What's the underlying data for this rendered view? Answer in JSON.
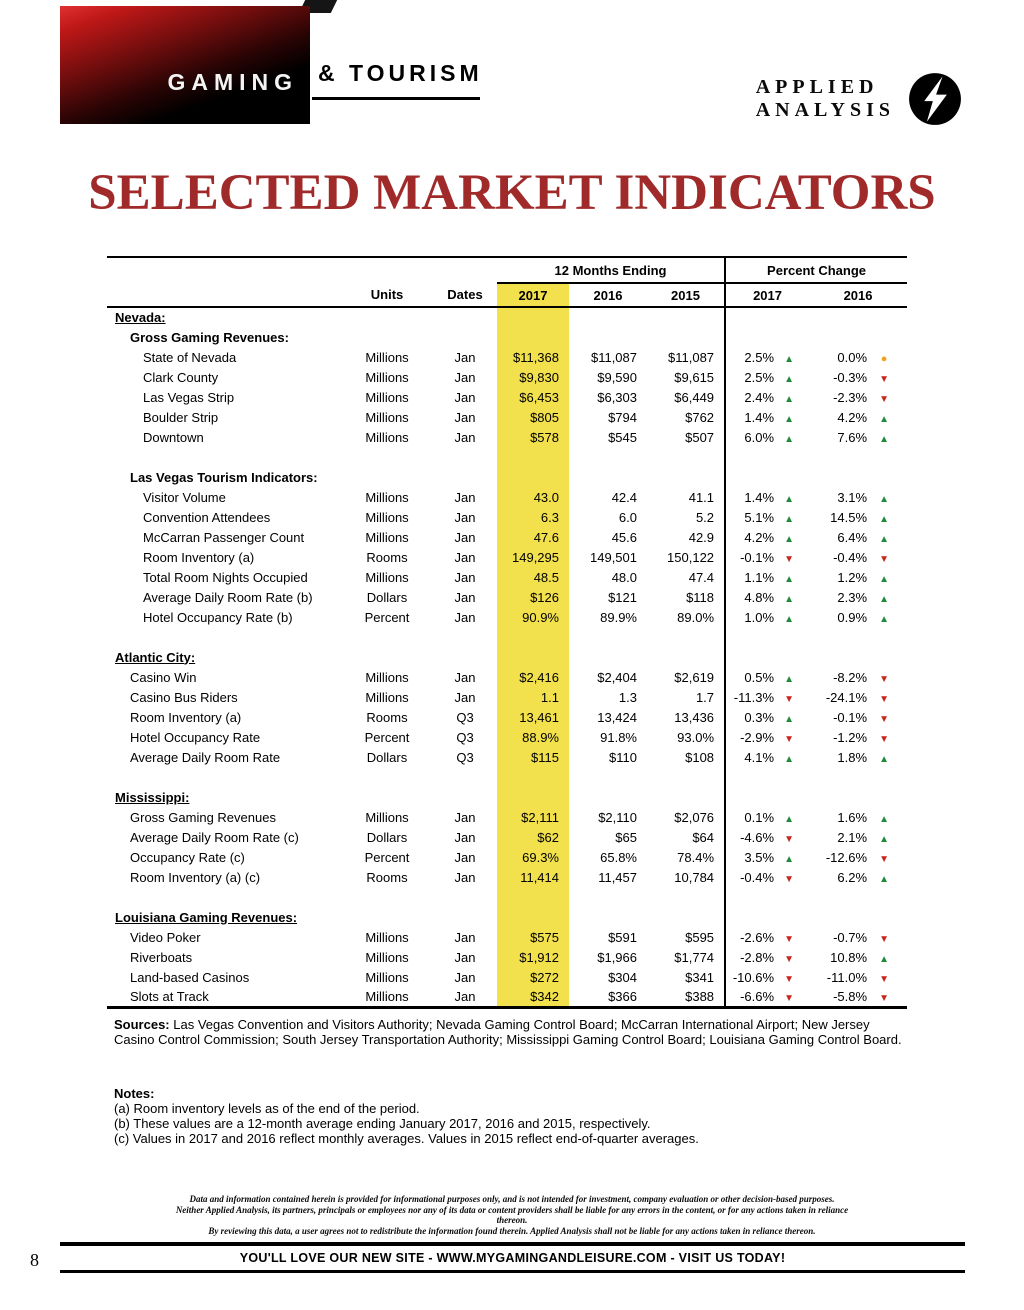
{
  "masthead": {
    "gaming": "GAMING",
    "tourism": "& TOURISM",
    "logo_top": "APPLIED",
    "logo_bottom": "ANALYSIS"
  },
  "title": "SELECTED MARKET INDICATORS",
  "table": {
    "groups": {
      "months": "12 Months Ending",
      "percent": "Percent Change"
    },
    "header": {
      "units": "Units",
      "dates": "Dates",
      "y2017": "2017",
      "y2016": "2016",
      "y2015": "2015",
      "pc2017": "2017",
      "pc2016": "2016"
    },
    "highlight_color": "#F2E14D",
    "up_color": "#1E8A3C",
    "down_color": "#C9251C",
    "flat_color": "#F0A31B",
    "rows": [
      {
        "type": "section",
        "label": "Nevada:"
      },
      {
        "type": "subsection",
        "label": "Gross Gaming Revenues:"
      },
      {
        "type": "data",
        "indent": 2,
        "label": "State of Nevada",
        "units": "Millions",
        "dates": "Jan",
        "y2017": "$11,368",
        "y2016": "$11,087",
        "y2015": "$11,087",
        "pc2017": "2.5%",
        "pc2017_dir": "up",
        "pc2016": "0.0%",
        "pc2016_dir": "flat"
      },
      {
        "type": "data",
        "indent": 2,
        "label": "Clark County",
        "units": "Millions",
        "dates": "Jan",
        "y2017": "$9,830",
        "y2016": "$9,590",
        "y2015": "$9,615",
        "pc2017": "2.5%",
        "pc2017_dir": "up",
        "pc2016": "-0.3%",
        "pc2016_dir": "down"
      },
      {
        "type": "data",
        "indent": 2,
        "label": "Las Vegas Strip",
        "units": "Millions",
        "dates": "Jan",
        "y2017": "$6,453",
        "y2016": "$6,303",
        "y2015": "$6,449",
        "pc2017": "2.4%",
        "pc2017_dir": "up",
        "pc2016": "-2.3%",
        "pc2016_dir": "down"
      },
      {
        "type": "data",
        "indent": 2,
        "label": "Boulder Strip",
        "units": "Millions",
        "dates": "Jan",
        "y2017": "$805",
        "y2016": "$794",
        "y2015": "$762",
        "pc2017": "1.4%",
        "pc2017_dir": "up",
        "pc2016": "4.2%",
        "pc2016_dir": "up"
      },
      {
        "type": "data",
        "indent": 2,
        "label": "Downtown",
        "units": "Millions",
        "dates": "Jan",
        "y2017": "$578",
        "y2016": "$545",
        "y2015": "$507",
        "pc2017": "6.0%",
        "pc2017_dir": "up",
        "pc2016": "7.6%",
        "pc2016_dir": "up"
      },
      {
        "type": "spacer"
      },
      {
        "type": "subsection",
        "label": "Las Vegas Tourism Indicators:"
      },
      {
        "type": "data",
        "indent": 2,
        "label": "Visitor Volume",
        "units": "Millions",
        "dates": "Jan",
        "y2017": "43.0",
        "y2016": "42.4",
        "y2015": "41.1",
        "pc2017": "1.4%",
        "pc2017_dir": "up",
        "pc2016": "3.1%",
        "pc2016_dir": "up"
      },
      {
        "type": "data",
        "indent": 2,
        "label": "Convention Attendees",
        "units": "Millions",
        "dates": "Jan",
        "y2017": "6.3",
        "y2016": "6.0",
        "y2015": "5.2",
        "pc2017": "5.1%",
        "pc2017_dir": "up",
        "pc2016": "14.5%",
        "pc2016_dir": "up"
      },
      {
        "type": "data",
        "indent": 2,
        "label": "McCarran Passenger Count",
        "units": "Millions",
        "dates": "Jan",
        "y2017": "47.6",
        "y2016": "45.6",
        "y2015": "42.9",
        "pc2017": "4.2%",
        "pc2017_dir": "up",
        "pc2016": "6.4%",
        "pc2016_dir": "up"
      },
      {
        "type": "data",
        "indent": 2,
        "label": "Room Inventory (a)",
        "units": "Rooms",
        "dates": "Jan",
        "y2017": "149,295",
        "y2016": "149,501",
        "y2015": "150,122",
        "pc2017": "-0.1%",
        "pc2017_dir": "down",
        "pc2016": "-0.4%",
        "pc2016_dir": "down"
      },
      {
        "type": "data",
        "indent": 2,
        "label": "Total Room Nights Occupied",
        "units": "Millions",
        "dates": "Jan",
        "y2017": "48.5",
        "y2016": "48.0",
        "y2015": "47.4",
        "pc2017": "1.1%",
        "pc2017_dir": "up",
        "pc2016": "1.2%",
        "pc2016_dir": "up"
      },
      {
        "type": "data",
        "indent": 2,
        "label": "Average Daily Room Rate (b)",
        "units": "Dollars",
        "dates": "Jan",
        "y2017": "$126",
        "y2016": "$121",
        "y2015": "$118",
        "pc2017": "4.8%",
        "pc2017_dir": "up",
        "pc2016": "2.3%",
        "pc2016_dir": "up"
      },
      {
        "type": "data",
        "indent": 2,
        "label": "Hotel Occupancy Rate (b)",
        "units": "Percent",
        "dates": "Jan",
        "y2017": "90.9%",
        "y2016": "89.9%",
        "y2015": "89.0%",
        "pc2017": "1.0%",
        "pc2017_dir": "up",
        "pc2016": "0.9%",
        "pc2016_dir": "up"
      },
      {
        "type": "spacer"
      },
      {
        "type": "section",
        "label": "Atlantic City:"
      },
      {
        "type": "data",
        "indent": 1,
        "label": "Casino Win",
        "units": "Millions",
        "dates": "Jan",
        "y2017": "$2,416",
        "y2016": "$2,404",
        "y2015": "$2,619",
        "pc2017": "0.5%",
        "pc2017_dir": "up",
        "pc2016": "-8.2%",
        "pc2016_dir": "down"
      },
      {
        "type": "data",
        "indent": 1,
        "label": "Casino Bus Riders",
        "units": "Millions",
        "dates": "Jan",
        "y2017": "1.1",
        "y2016": "1.3",
        "y2015": "1.7",
        "pc2017": "-11.3%",
        "pc2017_dir": "down",
        "pc2016": "-24.1%",
        "pc2016_dir": "down"
      },
      {
        "type": "data",
        "indent": 1,
        "label": "Room Inventory (a)",
        "units": "Rooms",
        "dates": "Q3",
        "y2017": "13,461",
        "y2016": "13,424",
        "y2015": "13,436",
        "pc2017": "0.3%",
        "pc2017_dir": "up",
        "pc2016": "-0.1%",
        "pc2016_dir": "down"
      },
      {
        "type": "data",
        "indent": 1,
        "label": "Hotel Occupancy Rate",
        "units": "Percent",
        "dates": "Q3",
        "y2017": "88.9%",
        "y2016": "91.8%",
        "y2015": "93.0%",
        "pc2017": "-2.9%",
        "pc2017_dir": "down",
        "pc2016": "-1.2%",
        "pc2016_dir": "down"
      },
      {
        "type": "data",
        "indent": 1,
        "label": "Average Daily Room Rate",
        "units": "Dollars",
        "dates": "Q3",
        "y2017": "$115",
        "y2016": "$110",
        "y2015": "$108",
        "pc2017": "4.1%",
        "pc2017_dir": "up",
        "pc2016": "1.8%",
        "pc2016_dir": "up"
      },
      {
        "type": "spacer"
      },
      {
        "type": "section",
        "label": "Mississippi:"
      },
      {
        "type": "data",
        "indent": 1,
        "label": "Gross Gaming Revenues",
        "units": "Millions",
        "dates": "Jan",
        "y2017": "$2,111",
        "y2016": "$2,110",
        "y2015": "$2,076",
        "pc2017": "0.1%",
        "pc2017_dir": "up",
        "pc2016": "1.6%",
        "pc2016_dir": "up"
      },
      {
        "type": "data",
        "indent": 1,
        "label": "Average Daily Room Rate (c)",
        "units": "Dollars",
        "dates": "Jan",
        "y2017": "$62",
        "y2016": "$65",
        "y2015": "$64",
        "pc2017": "-4.6%",
        "pc2017_dir": "down",
        "pc2016": "2.1%",
        "pc2016_dir": "up"
      },
      {
        "type": "data",
        "indent": 1,
        "label": "Occupancy Rate (c)",
        "units": "Percent",
        "dates": "Jan",
        "y2017": "69.3%",
        "y2016": "65.8%",
        "y2015": "78.4%",
        "pc2017": "3.5%",
        "pc2017_dir": "up",
        "pc2016": "-12.6%",
        "pc2016_dir": "down"
      },
      {
        "type": "data",
        "indent": 1,
        "label": "Room Inventory (a) (c)",
        "units": "Rooms",
        "dates": "Jan",
        "y2017": "11,414",
        "y2016": "11,457",
        "y2015": "10,784",
        "pc2017": "-0.4%",
        "pc2017_dir": "down",
        "pc2016": "6.2%",
        "pc2016_dir": "up"
      },
      {
        "type": "spacer"
      },
      {
        "type": "section",
        "label": "Louisiana Gaming Revenues:"
      },
      {
        "type": "data",
        "indent": 1,
        "label": "Video Poker",
        "units": "Millions",
        "dates": "Jan",
        "y2017": "$575",
        "y2016": "$591",
        "y2015": "$595",
        "pc2017": "-2.6%",
        "pc2017_dir": "down",
        "pc2016": "-0.7%",
        "pc2016_dir": "down"
      },
      {
        "type": "data",
        "indent": 1,
        "label": "Riverboats",
        "units": "Millions",
        "dates": "Jan",
        "y2017": "$1,912",
        "y2016": "$1,966",
        "y2015": "$1,774",
        "pc2017": "-2.8%",
        "pc2017_dir": "down",
        "pc2016": "10.8%",
        "pc2016_dir": "up"
      },
      {
        "type": "data",
        "indent": 1,
        "label": "Land-based Casinos",
        "units": "Millions",
        "dates": "Jan",
        "y2017": "$272",
        "y2016": "$304",
        "y2015": "$341",
        "pc2017": "-10.6%",
        "pc2017_dir": "down",
        "pc2016": "-11.0%",
        "pc2016_dir": "down"
      },
      {
        "type": "data",
        "indent": 1,
        "label": "Slots at Track",
        "units": "Millions",
        "dates": "Jan",
        "y2017": "$342",
        "y2016": "$366",
        "y2015": "$388",
        "pc2017": "-6.6%",
        "pc2017_dir": "down",
        "pc2016": "-5.8%",
        "pc2016_dir": "down"
      }
    ]
  },
  "sources": {
    "label": "Sources:",
    "text": "Las Vegas Convention and Visitors Authority; Nevada Gaming Control Board; McCarran International Airport; New Jersey Casino Control Commission; South Jersey Transportation Authority; Mississippi Gaming Control Board; Louisiana Gaming Control Board."
  },
  "notes": {
    "label": "Notes:",
    "items": [
      "(a) Room inventory levels as of the end of the period.",
      "(b) These values are a 12-month average ending January 2017, 2016 and 2015, respectively.",
      "(c) Values in 2017 and 2016 reflect monthly averages. Values in 2015 reflect end-of-quarter averages."
    ]
  },
  "disclaimer": [
    "Data and information contained herein is provided for informational purposes only, and is not intended for investment, company evaluation or other decision-based purposes.",
    "Neither Applied Analysis, its partners, principals or employees nor any of its data or content providers shall be liable for any errors in the content, or for any actions taken in reliance thereon.",
    "By reviewing this data, a user agrees not to redistribute the information found therein. Applied Analysis shall not be liable for any actions taken in reliance thereon."
  ],
  "footer": {
    "page_number": "8",
    "text": "YOU'LL LOVE OUR NEW SITE - WWW.MYGAMINGANDLEISURE.COM - VISIT US TODAY!"
  }
}
